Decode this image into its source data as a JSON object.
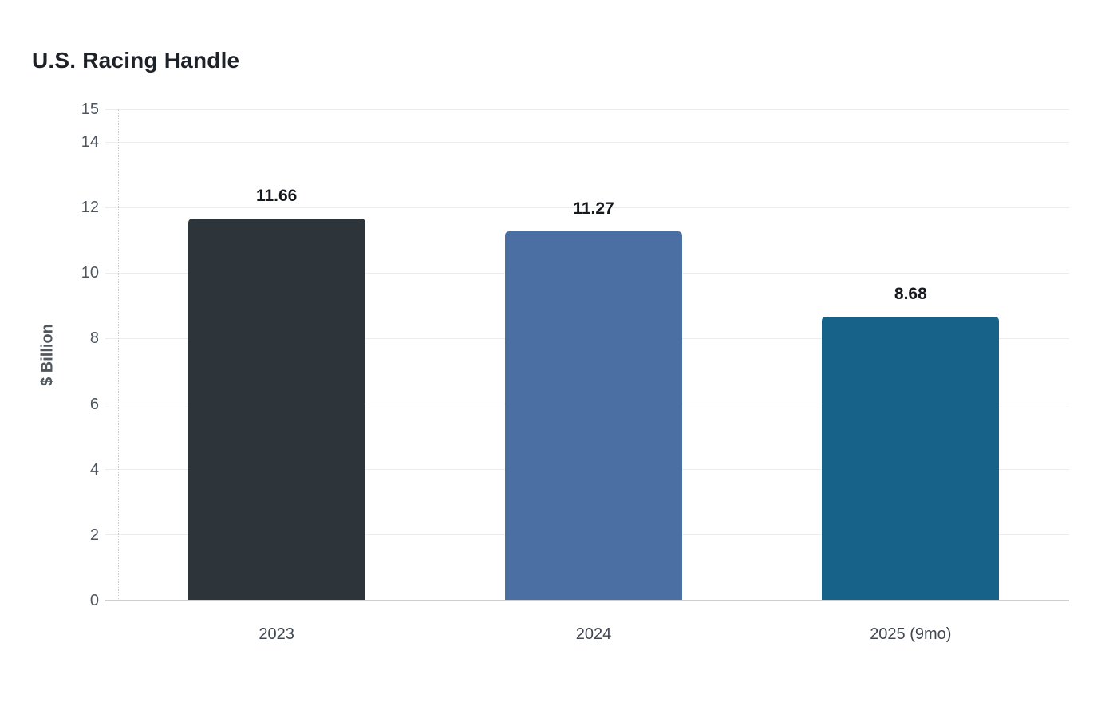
{
  "chart_data": {
    "type": "bar",
    "title": "U.S. Racing Handle",
    "ylabel": "$ Billion",
    "xlabel": "",
    "categories": [
      "2023",
      "2024",
      "2025 (9mo)"
    ],
    "values": [
      11.66,
      11.27,
      8.68
    ],
    "value_labels": [
      "11.66",
      "11.27",
      "8.68"
    ],
    "bar_colors": [
      "#2d353b",
      "#4b6fa3",
      "#166288"
    ],
    "ylim": [
      0,
      15
    ],
    "yticks": [
      0,
      2,
      4,
      6,
      8,
      10,
      12,
      14,
      15
    ],
    "grid": "horizontal-solid-light",
    "legend": "none",
    "background": "#ffffff"
  }
}
